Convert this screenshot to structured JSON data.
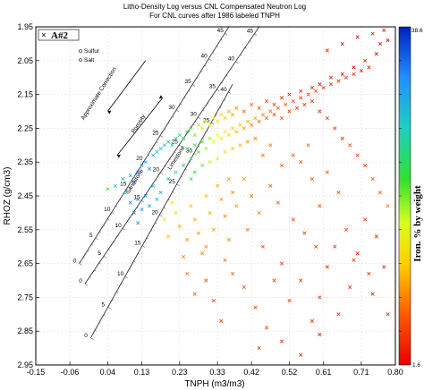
{
  "chart_data": {
    "type": "scatter",
    "title": "Litho-Density Log versus CNL Compensated Neutron Log",
    "subtitle": "For CNL curves after 1986 labeled TNPH",
    "xlabel": "TNPH (m3/m3)",
    "ylabel": "RHOZ (g/cm3)",
    "xlim": [
      -0.15,
      0.8
    ],
    "ylim": [
      2.95,
      1.95
    ],
    "x_ticks": [
      "-0.15",
      "-0.06",
      "0.04",
      "0.13",
      "0.23",
      "0.33",
      "0.42",
      "0.52",
      "0.61",
      "0.71",
      "0.80"
    ],
    "x_tick_values": [
      -0.15,
      -0.06,
      0.04,
      0.13,
      0.23,
      0.33,
      0.42,
      0.52,
      0.61,
      0.71,
      0.8
    ],
    "y_ticks": [
      "1.95",
      "2.05",
      "2.15",
      "2.25",
      "2.35",
      "2.45",
      "2.55",
      "2.65",
      "2.75",
      "2.85",
      "2.95"
    ],
    "y_tick_values": [
      1.95,
      2.05,
      2.15,
      2.25,
      2.35,
      2.45,
      2.55,
      2.65,
      2.75,
      2.85,
      2.95
    ],
    "grid": true,
    "legend": {
      "placement": "top-left",
      "entries": [
        "A#2"
      ]
    },
    "minerals": [
      "Sulfur",
      "Salt"
    ],
    "overlay_labels": {
      "porosity": "Porosity",
      "correction": "Approximate Correction",
      "sandstone": "Sandstone",
      "limestone": "Limestone"
    },
    "porosity_scale": {
      "sandstone": [
        "0",
        "5",
        "10",
        "15",
        "20",
        "25",
        "30",
        "35",
        "40",
        "45"
      ],
      "limestone": [
        "0",
        "5",
        "10",
        "15",
        "20",
        "25",
        "30",
        "35",
        "40",
        "45"
      ],
      "dolomite": [
        "0",
        "5",
        "10",
        "15",
        "20",
        "25",
        "30",
        "35",
        "40"
      ]
    },
    "colorbar": {
      "label": "Iron. % by weight",
      "min": 1.6,
      "max": 38.6,
      "min_label": "1.6",
      "max_label": "38.6"
    },
    "series": [
      {
        "name": "A#2",
        "marker": "x",
        "points": [
          [
            0.04,
            2.43,
            24
          ],
          [
            0.06,
            2.42,
            28
          ],
          [
            0.08,
            2.4,
            30
          ],
          [
            0.1,
            2.39,
            32
          ],
          [
            0.09,
            2.44,
            30
          ],
          [
            0.12,
            2.38,
            34
          ],
          [
            0.13,
            2.36,
            33
          ],
          [
            0.14,
            2.35,
            31
          ],
          [
            0.11,
            2.41,
            35
          ],
          [
            0.15,
            2.37,
            33
          ],
          [
            0.16,
            2.33,
            30
          ],
          [
            0.17,
            2.32,
            29
          ],
          [
            0.18,
            2.31,
            28
          ],
          [
            0.19,
            2.3,
            30
          ],
          [
            0.2,
            2.29,
            27
          ],
          [
            0.21,
            2.3,
            26
          ],
          [
            0.22,
            2.28,
            25
          ],
          [
            0.23,
            2.27,
            24
          ],
          [
            0.24,
            2.28,
            23
          ],
          [
            0.25,
            2.26,
            22
          ],
          [
            0.26,
            2.25,
            21
          ],
          [
            0.27,
            2.27,
            20
          ],
          [
            0.28,
            2.24,
            19
          ],
          [
            0.29,
            2.25,
            18
          ],
          [
            0.3,
            2.23,
            17
          ],
          [
            0.31,
            2.24,
            16
          ],
          [
            0.32,
            2.22,
            15
          ],
          [
            0.33,
            2.23,
            14
          ],
          [
            0.34,
            2.21,
            13
          ],
          [
            0.35,
            2.22,
            12
          ],
          [
            0.36,
            2.2,
            11
          ],
          [
            0.37,
            2.21,
            10
          ],
          [
            0.38,
            2.19,
            9
          ],
          [
            0.4,
            2.2,
            8
          ],
          [
            0.42,
            2.18,
            7
          ],
          [
            0.44,
            2.19,
            6
          ],
          [
            0.46,
            2.17,
            5
          ],
          [
            0.48,
            2.18,
            4.5
          ],
          [
            0.5,
            2.16,
            4
          ],
          [
            0.52,
            2.15,
            3.5
          ],
          [
            0.55,
            2.14,
            3
          ],
          [
            0.58,
            2.13,
            2.8
          ],
          [
            0.6,
            2.12,
            2.5
          ],
          [
            0.63,
            2.1,
            2.3
          ],
          [
            0.66,
            2.09,
            2.2
          ],
          [
            0.69,
            2.07,
            2.1
          ],
          [
            0.72,
            2.05,
            2.0
          ],
          [
            0.75,
            2.03,
            1.9
          ],
          [
            0.78,
            1.99,
            1.8
          ],
          [
            0.76,
            2.0,
            1.9
          ],
          [
            0.2,
            2.4,
            29
          ],
          [
            0.22,
            2.38,
            27
          ],
          [
            0.24,
            2.36,
            25
          ],
          [
            0.26,
            2.34,
            23
          ],
          [
            0.28,
            2.32,
            21
          ],
          [
            0.3,
            2.31,
            19
          ],
          [
            0.32,
            2.29,
            17
          ],
          [
            0.34,
            2.28,
            15
          ],
          [
            0.36,
            2.27,
            13
          ],
          [
            0.38,
            2.26,
            11
          ],
          [
            0.4,
            2.25,
            10
          ],
          [
            0.42,
            2.24,
            9
          ],
          [
            0.44,
            2.23,
            8
          ],
          [
            0.46,
            2.22,
            7
          ],
          [
            0.48,
            2.21,
            6
          ],
          [
            0.5,
            2.22,
            5.5
          ],
          [
            0.52,
            2.2,
            5
          ],
          [
            0.54,
            2.19,
            4.5
          ],
          [
            0.56,
            2.18,
            4
          ],
          [
            0.58,
            2.17,
            3.8
          ],
          [
            0.6,
            2.2,
            4
          ],
          [
            0.62,
            2.22,
            4.2
          ],
          [
            0.64,
            2.25,
            4.5
          ],
          [
            0.66,
            2.28,
            5
          ],
          [
            0.68,
            2.3,
            5.5
          ],
          [
            0.7,
            2.33,
            6
          ],
          [
            0.72,
            2.36,
            6.5
          ],
          [
            0.74,
            2.4,
            7
          ],
          [
            0.76,
            2.44,
            7.5
          ],
          [
            0.78,
            2.48,
            8
          ],
          [
            0.3,
            2.45,
            12
          ],
          [
            0.31,
            2.5,
            11
          ],
          [
            0.32,
            2.55,
            10
          ],
          [
            0.3,
            2.6,
            9
          ],
          [
            0.29,
            2.62,
            9
          ],
          [
            0.28,
            2.56,
            10
          ],
          [
            0.27,
            2.52,
            11
          ],
          [
            0.26,
            2.48,
            12
          ],
          [
            0.25,
            2.58,
            10
          ],
          [
            0.24,
            2.63,
            9
          ],
          [
            0.23,
            2.54,
            11
          ],
          [
            0.22,
            2.5,
            13
          ],
          [
            0.21,
            2.47,
            14
          ],
          [
            0.2,
            2.57,
            12
          ],
          [
            0.19,
            2.52,
            15
          ],
          [
            0.33,
            2.42,
            11
          ],
          [
            0.34,
            2.46,
            10
          ],
          [
            0.35,
            2.51,
            9
          ],
          [
            0.36,
            2.4,
            10
          ],
          [
            0.37,
            2.44,
            9
          ],
          [
            0.1,
            2.47,
            34
          ],
          [
            0.11,
            2.5,
            33
          ],
          [
            0.12,
            2.46,
            34
          ],
          [
            0.13,
            2.49,
            32
          ],
          [
            0.14,
            2.45,
            32
          ],
          [
            0.15,
            2.48,
            31
          ],
          [
            0.12,
            2.53,
            33
          ],
          [
            0.16,
            2.42,
            31
          ],
          [
            0.17,
            2.46,
            30
          ],
          [
            0.18,
            2.44,
            30
          ],
          [
            0.45,
            2.6,
            6
          ],
          [
            0.5,
            2.65,
            5
          ],
          [
            0.55,
            2.7,
            4.5
          ],
          [
            0.6,
            2.75,
            4
          ],
          [
            0.65,
            2.8,
            3.5
          ],
          [
            0.48,
            2.7,
            5
          ],
          [
            0.52,
            2.76,
            4.5
          ],
          [
            0.58,
            2.82,
            4
          ],
          [
            0.62,
            2.66,
            4
          ],
          [
            0.68,
            2.72,
            3.5
          ],
          [
            0.7,
            2.62,
            4
          ],
          [
            0.73,
            2.68,
            3.8
          ],
          [
            0.75,
            2.57,
            4.2
          ],
          [
            0.72,
            2.52,
            5
          ],
          [
            0.67,
            2.55,
            5
          ],
          [
            0.55,
            2.35,
            6
          ],
          [
            0.58,
            2.4,
            6
          ],
          [
            0.62,
            2.38,
            6.5
          ],
          [
            0.65,
            2.44,
            6
          ],
          [
            0.6,
            2.48,
            6
          ],
          [
            0.57,
            2.3,
            7
          ],
          [
            0.53,
            2.33,
            7
          ],
          [
            0.5,
            2.36,
            7.5
          ],
          [
            0.47,
            2.3,
            8
          ],
          [
            0.45,
            2.33,
            8.5
          ],
          [
            0.4,
            2.4,
            9.5
          ],
          [
            0.42,
            2.45,
            9
          ],
          [
            0.44,
            2.5,
            8.5
          ],
          [
            0.38,
            2.48,
            10
          ],
          [
            0.41,
            2.55,
            8
          ],
          [
            0.36,
            2.58,
            9
          ],
          [
            0.35,
            2.64,
            8
          ],
          [
            0.37,
            2.68,
            7
          ],
          [
            0.4,
            2.72,
            6
          ],
          [
            0.43,
            2.78,
            5.5
          ],
          [
            0.46,
            2.84,
            5
          ],
          [
            0.44,
            2.9,
            4.5
          ],
          [
            0.5,
            2.88,
            4
          ],
          [
            0.55,
            2.92,
            3.5
          ],
          [
            0.6,
            2.86,
            3.5
          ],
          [
            0.26,
            2.4,
            23
          ],
          [
            0.27,
            2.38,
            22
          ],
          [
            0.29,
            2.36,
            20
          ],
          [
            0.31,
            2.35,
            18
          ],
          [
            0.33,
            2.34,
            16
          ],
          [
            0.35,
            2.32,
            14
          ],
          [
            0.37,
            2.31,
            12
          ],
          [
            0.39,
            2.3,
            11
          ],
          [
            0.41,
            2.29,
            10
          ],
          [
            0.43,
            2.28,
            9
          ],
          [
            0.25,
            2.31,
            24
          ],
          [
            0.27,
            2.3,
            23
          ],
          [
            0.29,
            2.29,
            21
          ],
          [
            0.31,
            2.28,
            19
          ],
          [
            0.33,
            2.27,
            17
          ],
          [
            0.35,
            2.26,
            15
          ],
          [
            0.37,
            2.25,
            13
          ],
          [
            0.39,
            2.24,
            12
          ],
          [
            0.41,
            2.23,
            11
          ],
          [
            0.43,
            2.22,
            10
          ],
          [
            0.45,
            2.21,
            9
          ],
          [
            0.47,
            2.2,
            8
          ],
          [
            0.49,
            2.19,
            7
          ],
          [
            0.51,
            2.18,
            6.5
          ],
          [
            0.53,
            2.17,
            6
          ],
          [
            0.55,
            2.16,
            5.5
          ],
          [
            0.57,
            2.15,
            5
          ],
          [
            0.59,
            2.14,
            4.8
          ],
          [
            0.61,
            2.13,
            4.5
          ],
          [
            0.63,
            2.12,
            4.2
          ],
          [
            0.65,
            2.11,
            4
          ],
          [
            0.67,
            2.1,
            3.8
          ],
          [
            0.69,
            2.09,
            3.6
          ],
          [
            0.71,
            2.08,
            3.4
          ],
          [
            0.73,
            2.07,
            3.2
          ],
          [
            0.62,
            2.02,
            3
          ],
          [
            0.66,
            2.0,
            2.8
          ],
          [
            0.7,
            1.98,
            2.6
          ],
          [
            0.74,
            1.97,
            2.4
          ],
          [
            0.77,
            1.96,
            2.2
          ],
          [
            0.64,
            2.6,
            4
          ],
          [
            0.69,
            2.64,
            3.8
          ],
          [
            0.74,
            2.74,
            3.5
          ],
          [
            0.78,
            2.8,
            3.2
          ],
          [
            0.77,
            2.66,
            3.5
          ],
          [
            0.3,
            2.7,
            6
          ],
          [
            0.32,
            2.76,
            5
          ],
          [
            0.34,
            2.82,
            4.5
          ],
          [
            0.25,
            2.68,
            8
          ],
          [
            0.27,
            2.74,
            7
          ],
          [
            0.56,
            2.56,
            5
          ],
          [
            0.59,
            2.6,
            4.5
          ],
          [
            0.53,
            2.52,
            5.5
          ],
          [
            0.49,
            2.47,
            6
          ],
          [
            0.47,
            2.42,
            7
          ]
        ]
      }
    ]
  }
}
